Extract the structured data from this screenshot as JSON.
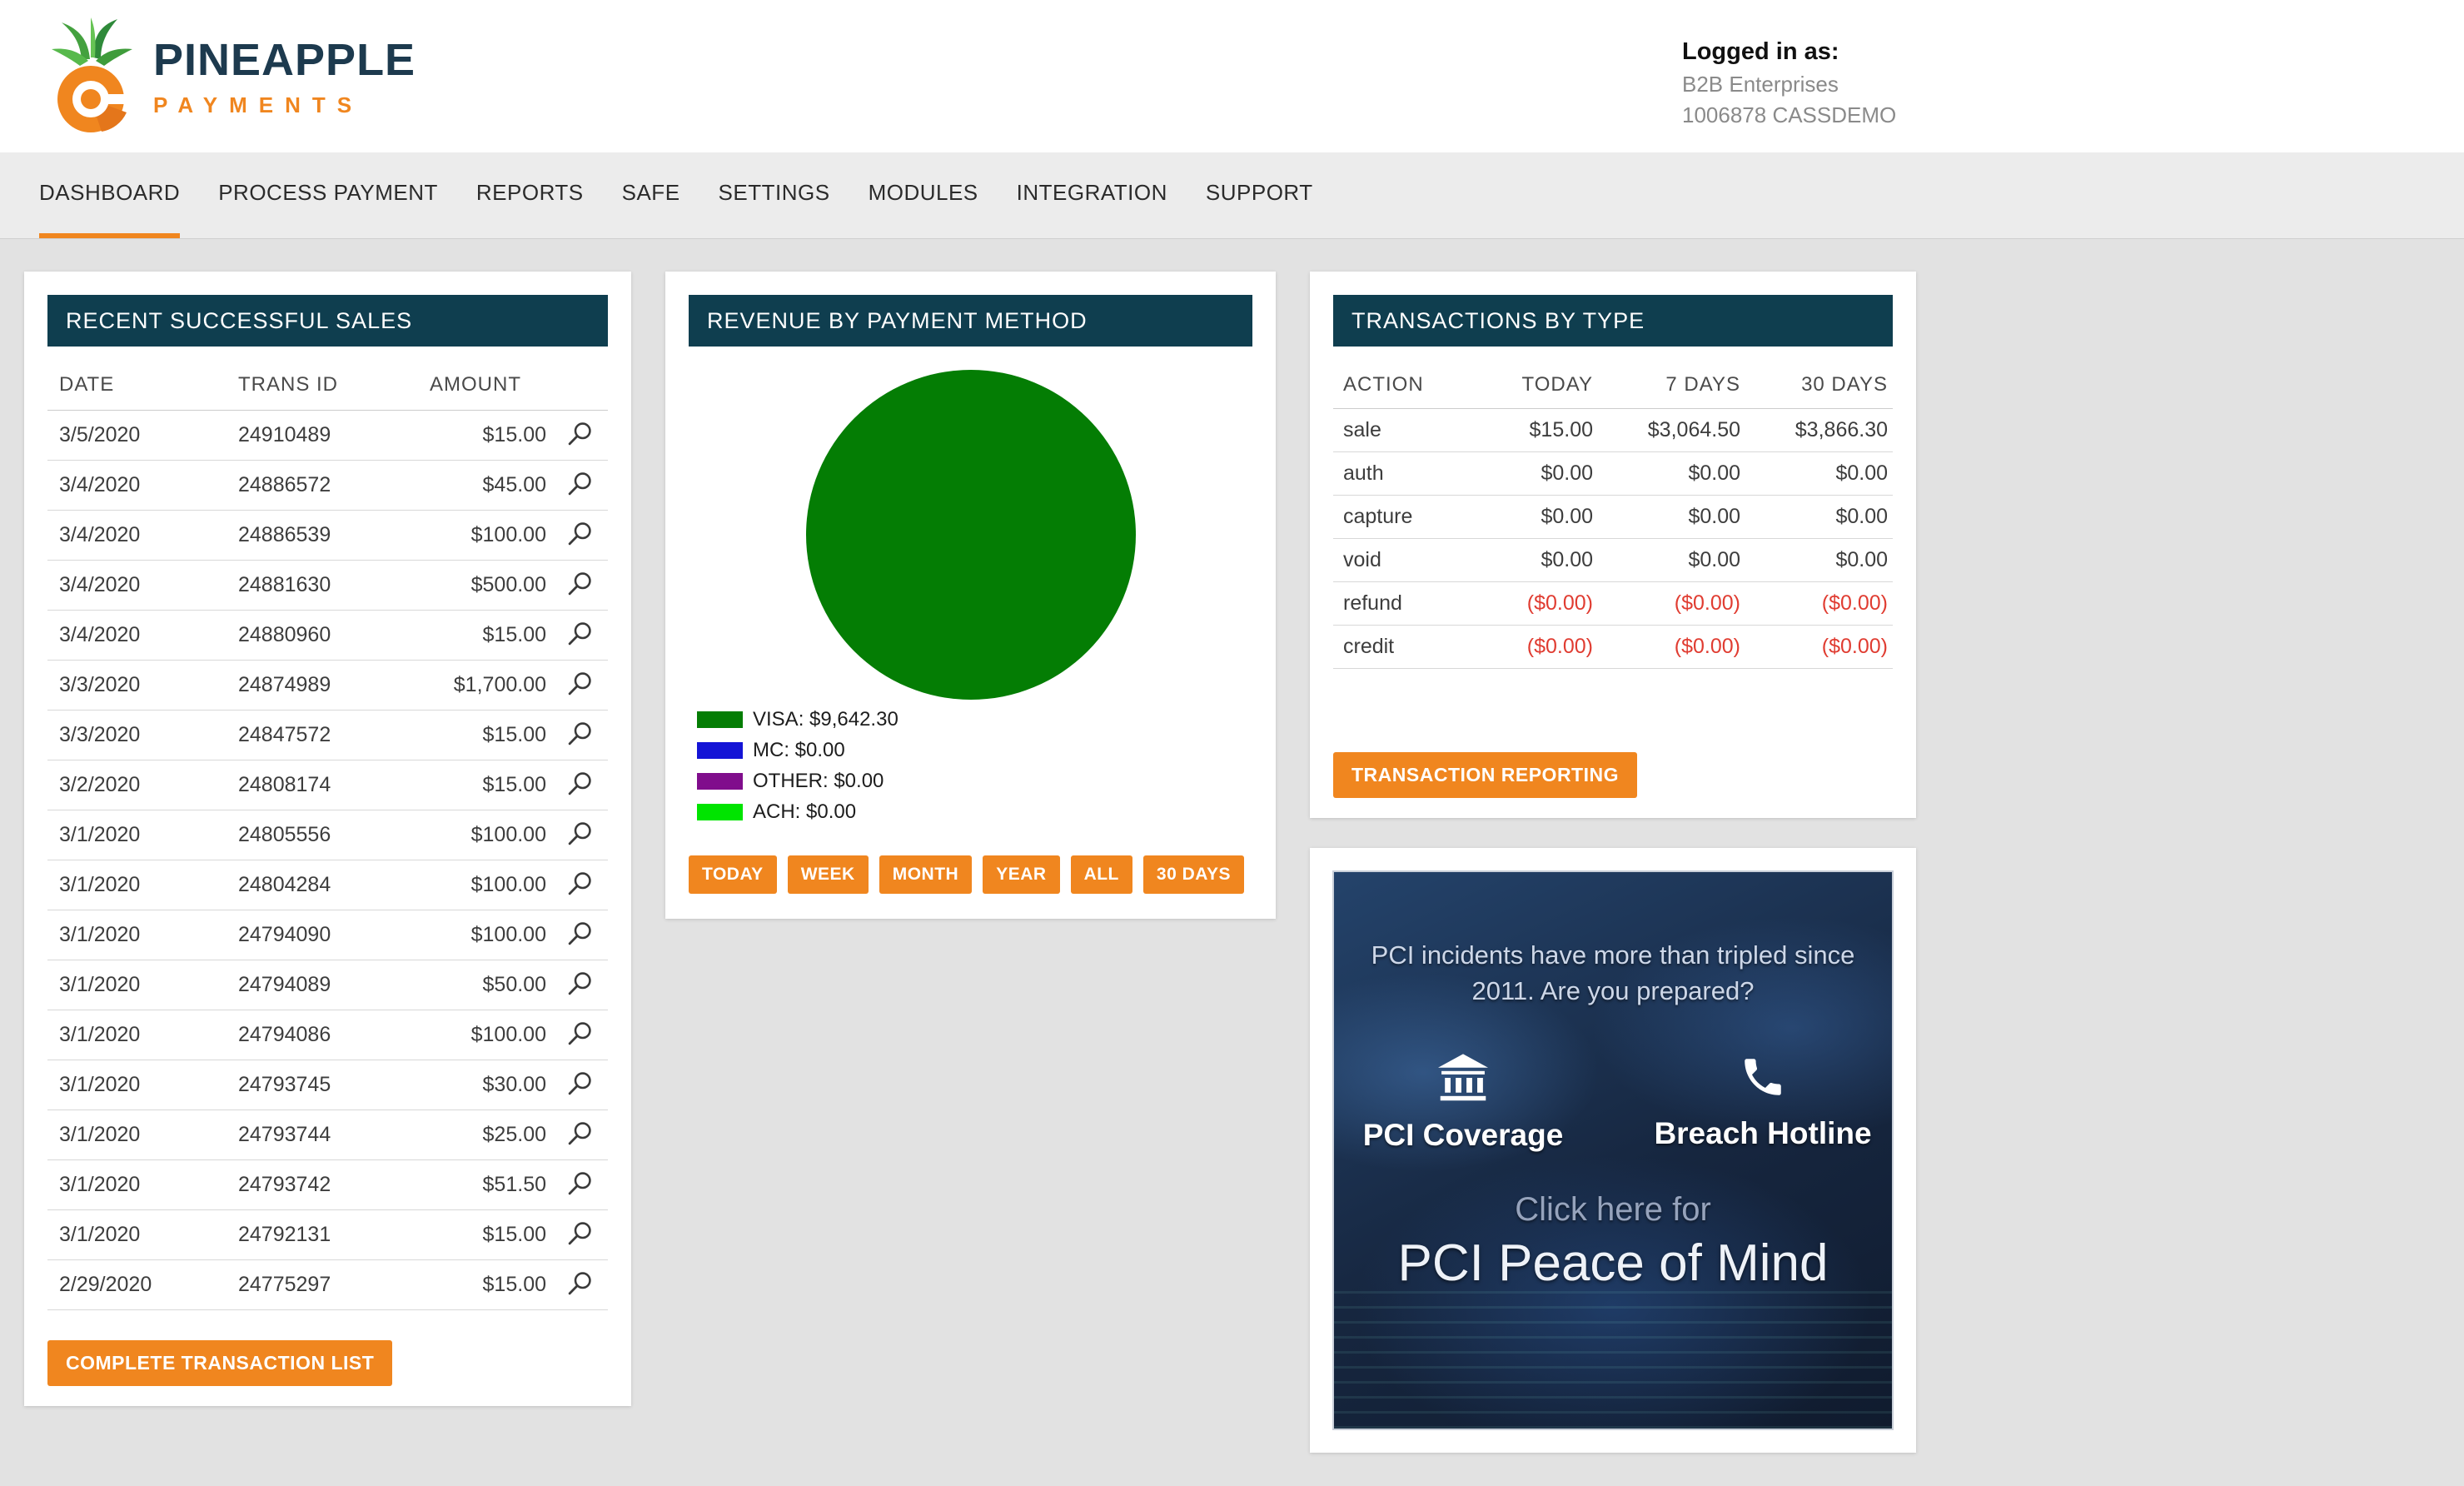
{
  "header": {
    "brand": {
      "line1": "PINEAPPLE",
      "line2": "PAYMENTS"
    },
    "login": {
      "label": "Logged in as:",
      "company": "B2B Enterprises",
      "account": "1006878 CASSDEMO"
    }
  },
  "nav": {
    "items": [
      {
        "label": "DASHBOARD",
        "active": true
      },
      {
        "label": "PROCESS PAYMENT",
        "active": false
      },
      {
        "label": "REPORTS",
        "active": false
      },
      {
        "label": "SAFE",
        "active": false
      },
      {
        "label": "SETTINGS",
        "active": false
      },
      {
        "label": "MODULES",
        "active": false
      },
      {
        "label": "INTEGRATION",
        "active": false
      },
      {
        "label": "SUPPORT",
        "active": false
      }
    ]
  },
  "sales": {
    "title": "RECENT SUCCESSFUL SALES",
    "columns": [
      "DATE",
      "TRANS ID",
      "AMOUNT"
    ],
    "rows": [
      {
        "date": "3/5/2020",
        "trans_id": "24910489",
        "amount": "$15.00"
      },
      {
        "date": "3/4/2020",
        "trans_id": "24886572",
        "amount": "$45.00"
      },
      {
        "date": "3/4/2020",
        "trans_id": "24886539",
        "amount": "$100.00"
      },
      {
        "date": "3/4/2020",
        "trans_id": "24881630",
        "amount": "$500.00"
      },
      {
        "date": "3/4/2020",
        "trans_id": "24880960",
        "amount": "$15.00"
      },
      {
        "date": "3/3/2020",
        "trans_id": "24874989",
        "amount": "$1,700.00"
      },
      {
        "date": "3/3/2020",
        "trans_id": "24847572",
        "amount": "$15.00"
      },
      {
        "date": "3/2/2020",
        "trans_id": "24808174",
        "amount": "$15.00"
      },
      {
        "date": "3/1/2020",
        "trans_id": "24805556",
        "amount": "$100.00"
      },
      {
        "date": "3/1/2020",
        "trans_id": "24804284",
        "amount": "$100.00"
      },
      {
        "date": "3/1/2020",
        "trans_id": "24794090",
        "amount": "$100.00"
      },
      {
        "date": "3/1/2020",
        "trans_id": "24794089",
        "amount": "$50.00"
      },
      {
        "date": "3/1/2020",
        "trans_id": "24794086",
        "amount": "$100.00"
      },
      {
        "date": "3/1/2020",
        "trans_id": "24793745",
        "amount": "$30.00"
      },
      {
        "date": "3/1/2020",
        "trans_id": "24793744",
        "amount": "$25.00"
      },
      {
        "date": "3/1/2020",
        "trans_id": "24793742",
        "amount": "$51.50"
      },
      {
        "date": "3/1/2020",
        "trans_id": "24792131",
        "amount": "$15.00"
      },
      {
        "date": "2/29/2020",
        "trans_id": "24775297",
        "amount": "$15.00"
      }
    ],
    "button": "COMPLETE TRANSACTION LIST"
  },
  "revenue": {
    "title": "REVENUE BY PAYMENT METHOD",
    "chart_data": {
      "type": "pie",
      "categories": [
        "VISA",
        "MC",
        "OTHER",
        "ACH"
      ],
      "values": [
        9642.3,
        0.0,
        0.0,
        0.0
      ],
      "colors": [
        "#047d04",
        "#1414d6",
        "#800d8c",
        "#00e400"
      ],
      "legend_labels": [
        "VISA: $9,642.30",
        "MC: $0.00",
        "OTHER: $0.00",
        "ACH: $0.00"
      ],
      "title": "REVENUE BY PAYMENT METHOD",
      "legend_position": "bottom-left"
    },
    "period_buttons": [
      "TODAY",
      "WEEK",
      "MONTH",
      "YEAR",
      "ALL",
      "30 DAYS"
    ]
  },
  "transactions": {
    "title": "TRANSACTIONS BY TYPE",
    "columns": [
      "ACTION",
      "TODAY",
      "7 DAYS",
      "30 DAYS"
    ],
    "rows": [
      {
        "action": "sale",
        "today": "$15.00",
        "days7": "$3,064.50",
        "days30": "$3,866.30",
        "negative": false
      },
      {
        "action": "auth",
        "today": "$0.00",
        "days7": "$0.00",
        "days30": "$0.00",
        "negative": false
      },
      {
        "action": "capture",
        "today": "$0.00",
        "days7": "$0.00",
        "days30": "$0.00",
        "negative": false
      },
      {
        "action": "void",
        "today": "$0.00",
        "days7": "$0.00",
        "days30": "$0.00",
        "negative": false
      },
      {
        "action": "refund",
        "today": "($0.00)",
        "days7": "($0.00)",
        "days30": "($0.00)",
        "negative": true
      },
      {
        "action": "credit",
        "today": "($0.00)",
        "days7": "($0.00)",
        "days30": "($0.00)",
        "negative": true
      }
    ],
    "button": "TRANSACTION REPORTING"
  },
  "pci_banner": {
    "headline": "PCI incidents have more than tripled since 2011. Are you prepared?",
    "features": [
      {
        "icon": "bank-icon",
        "label": "PCI Coverage"
      },
      {
        "icon": "phone-icon",
        "label": "Breach Hotline"
      }
    ],
    "click_text": "Click here for",
    "title": "PCI Peace of Mind"
  },
  "colors": {
    "accent_orange": "#f0861f",
    "header_teal": "#0f3e4f",
    "negative_red": "#e03c31"
  }
}
